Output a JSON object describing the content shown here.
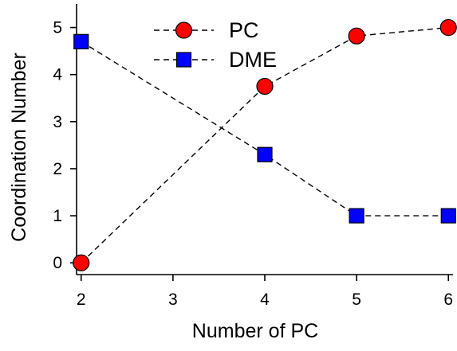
{
  "chart_data": {
    "type": "line",
    "x": [
      2,
      3,
      4,
      5,
      6
    ],
    "series": [
      {
        "name": "PC",
        "x": [
          2,
          4,
          5,
          6
        ],
        "values": [
          0.0,
          3.75,
          4.82,
          5.0
        ],
        "color": "#ff0000",
        "marker": "circle",
        "line_style": "dashed"
      },
      {
        "name": "DME",
        "x": [
          2,
          4,
          5,
          6
        ],
        "values": [
          4.7,
          2.3,
          1.0,
          1.0
        ],
        "color": "#0000ff",
        "marker": "square",
        "line_style": "dashed"
      }
    ],
    "xlabel": "Number of PC",
    "ylabel": "Coordination Number",
    "xticks": [
      2,
      3,
      4,
      5,
      6
    ],
    "yticks": [
      0,
      1,
      2,
      3,
      4,
      5
    ],
    "xlim": [
      1.95,
      6.05
    ],
    "ylim": [
      -0.25,
      5.5
    ],
    "grid": false,
    "legend_position": "top"
  }
}
